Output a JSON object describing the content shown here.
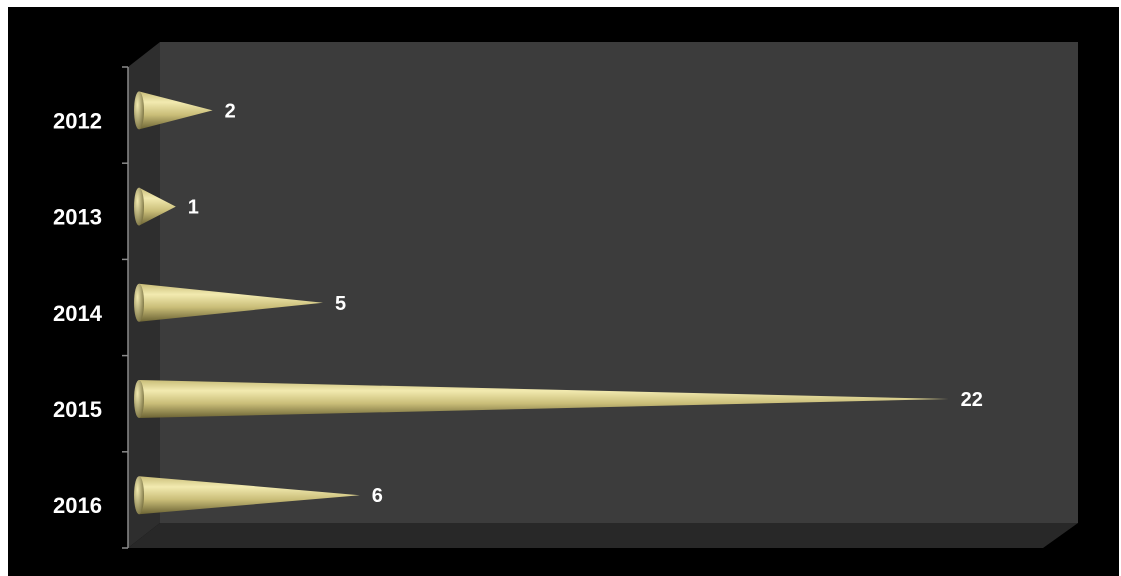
{
  "chart_data": {
    "type": "bar",
    "orientation": "horizontal",
    "bar_shape": "cone",
    "style": "3d",
    "categories": [
      "2012",
      "2013",
      "2014",
      "2015",
      "2016"
    ],
    "values": [
      2,
      1,
      5,
      22,
      6
    ],
    "data_labels": [
      "2",
      "1",
      "5",
      "22",
      "6"
    ],
    "title": "",
    "xlabel": "",
    "ylabel": "",
    "xlim": [
      0,
      24
    ],
    "grid": false,
    "legend": "none"
  },
  "colors": {
    "frame_background": "#000000",
    "plot_wall": "#3c3c3c",
    "plot_side_wall": "#2e2e2e",
    "plot_floor": "#282828",
    "cone_light": "#f2eab0",
    "cone_mid": "#c9bd78",
    "cone_dark": "#6b6334",
    "axis": "#8a8a8a",
    "label_text": "#ffffff"
  }
}
